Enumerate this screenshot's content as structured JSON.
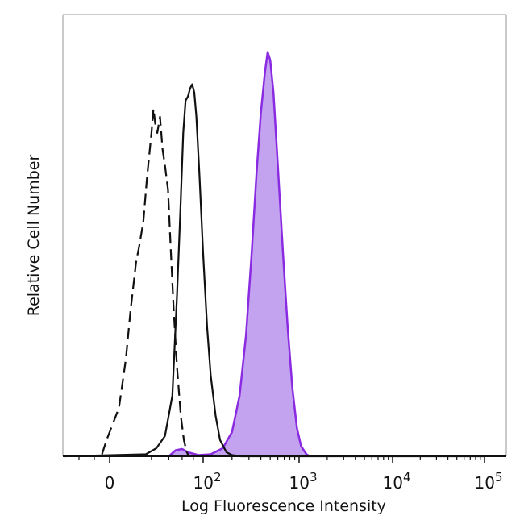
{
  "chart_data": {
    "type": "area",
    "xlabel": "Log Fluorescence Intensity",
    "ylabel": "Relative Cell Number",
    "x_scale": "biexponential",
    "xlim": [
      -30,
      100000
    ],
    "ylim": [
      0,
      1
    ],
    "grid": false,
    "legend": "none",
    "x_ticks": [
      {
        "value": 0,
        "base": "0",
        "exp": ""
      },
      {
        "value": 100,
        "base": "10",
        "exp": "2"
      },
      {
        "value": 1000,
        "base": "10",
        "exp": "3"
      },
      {
        "value": 10000,
        "base": "10",
        "exp": "4"
      },
      {
        "value": 100000,
        "base": "10",
        "exp": "5"
      }
    ],
    "series": [
      {
        "style": "dashed",
        "color": "#111111",
        "fill": false,
        "points": [
          [
            -5,
            0.005
          ],
          [
            -2,
            0.04
          ],
          [
            1,
            0.12
          ],
          [
            3,
            0.24
          ],
          [
            5,
            0.36
          ],
          [
            8,
            0.48
          ],
          [
            10,
            0.52
          ],
          [
            13,
            0.58
          ],
          [
            16,
            0.69
          ],
          [
            20,
            0.8
          ],
          [
            22,
            0.86
          ],
          [
            24,
            0.82
          ],
          [
            26,
            0.8
          ],
          [
            29,
            0.84
          ],
          [
            32,
            0.76
          ],
          [
            35,
            0.72
          ],
          [
            39,
            0.66
          ],
          [
            43,
            0.5
          ],
          [
            47,
            0.36
          ],
          [
            52,
            0.22
          ],
          [
            58,
            0.1
          ],
          [
            63,
            0.04
          ],
          [
            68,
            0.01
          ],
          [
            72,
            0.0
          ]
        ]
      },
      {
        "style": "solid",
        "color": "#111111",
        "fill": false,
        "points": [
          [
            -30,
            0.0
          ],
          [
            15,
            0.005
          ],
          [
            25,
            0.02
          ],
          [
            35,
            0.05
          ],
          [
            45,
            0.15
          ],
          [
            52,
            0.4
          ],
          [
            57,
            0.6
          ],
          [
            62,
            0.8
          ],
          [
            66,
            0.88
          ],
          [
            70,
            0.89
          ],
          [
            74,
            0.91
          ],
          [
            78,
            0.92
          ],
          [
            82,
            0.9
          ],
          [
            86,
            0.84
          ],
          [
            92,
            0.7
          ],
          [
            100,
            0.5
          ],
          [
            110,
            0.32
          ],
          [
            120,
            0.2
          ],
          [
            135,
            0.1
          ],
          [
            150,
            0.04
          ],
          [
            175,
            0.01
          ],
          [
            200,
            0.003
          ],
          [
            250,
            0.0
          ],
          [
            100000,
            0.0
          ]
        ]
      },
      {
        "style": "filled",
        "color": "#8a2be2",
        "fill": true,
        "fill_color": "#c3a2f0",
        "points": [
          [
            40,
            0.0
          ],
          [
            50,
            0.015
          ],
          [
            60,
            0.018
          ],
          [
            70,
            0.01
          ],
          [
            90,
            0.003
          ],
          [
            120,
            0.005
          ],
          [
            160,
            0.02
          ],
          [
            200,
            0.06
          ],
          [
            240,
            0.15
          ],
          [
            280,
            0.3
          ],
          [
            320,
            0.5
          ],
          [
            360,
            0.7
          ],
          [
            400,
            0.85
          ],
          [
            440,
            0.95
          ],
          [
            470,
            1.0
          ],
          [
            500,
            0.98
          ],
          [
            540,
            0.9
          ],
          [
            600,
            0.72
          ],
          [
            680,
            0.5
          ],
          [
            760,
            0.32
          ],
          [
            850,
            0.17
          ],
          [
            950,
            0.07
          ],
          [
            1050,
            0.025
          ],
          [
            1200,
            0.005
          ],
          [
            1300,
            0.0
          ]
        ]
      }
    ]
  }
}
